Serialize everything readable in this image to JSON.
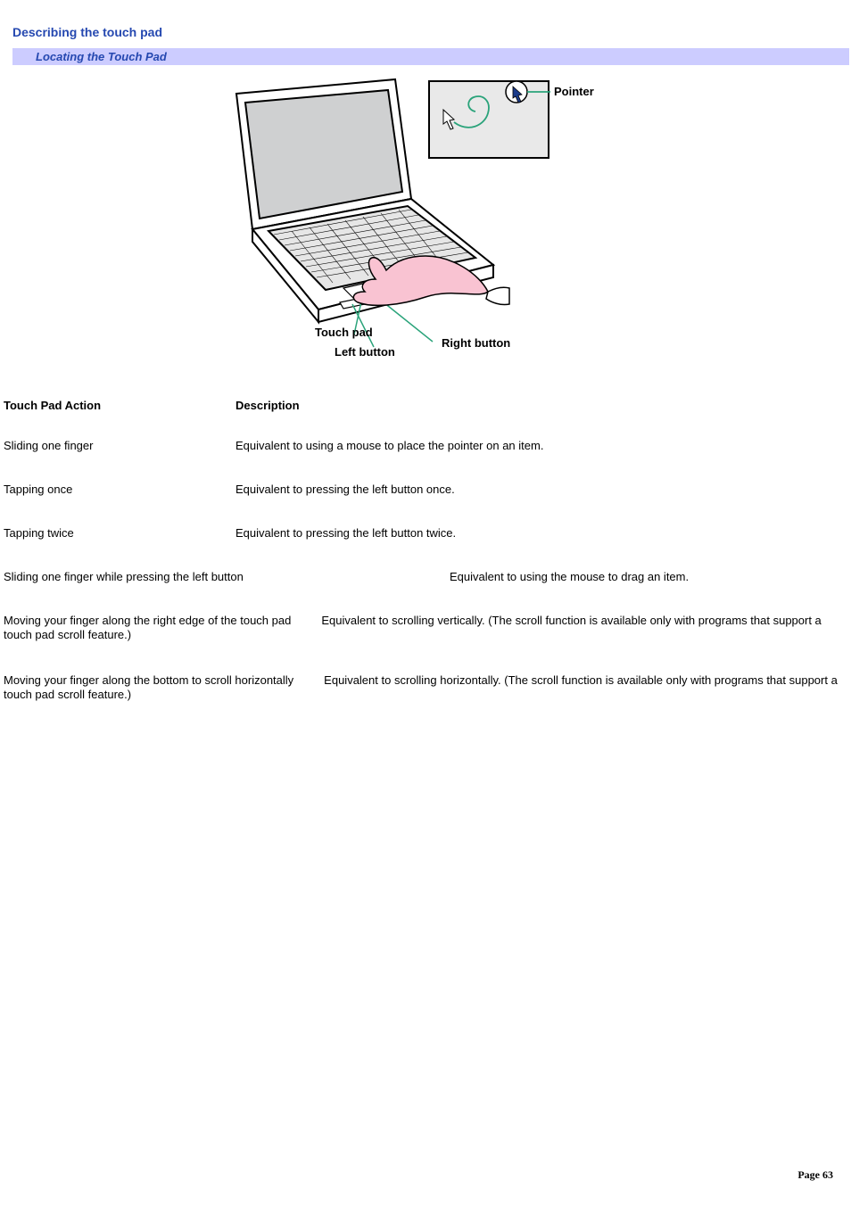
{
  "colors": {
    "heading": "#2548b0",
    "subbar_bg": "#ccccff",
    "subbar_text": "#2548b0",
    "hand_fill": "#f9c3d2",
    "swirl": "#2aa37a",
    "pointer_fill": "#1a3a8a",
    "text": "#000000",
    "bg": "#ffffff",
    "line": "#000000",
    "screen_fill": "#cfd0d1"
  },
  "heading": "Describing the touch pad",
  "sub_heading": "Locating the Touch Pad",
  "diagram_labels": {
    "pointer": "Pointer",
    "touch_pad": "Touch pad",
    "left_button": "Left button",
    "right_button": "Right button"
  },
  "table": {
    "header_action": "Touch Pad Action",
    "header_desc": "Description",
    "rows": [
      {
        "action": "Sliding one finger",
        "desc": "Equivalent to using a mouse to place the pointer on an item.",
        "layout": "simple"
      },
      {
        "action": "Tapping once",
        "desc": "Equivalent to pressing the left button once.",
        "layout": "simple"
      },
      {
        "action": "Tapping twice",
        "desc": "Equivalent to pressing the left button twice.",
        "layout": "simple"
      },
      {
        "action": "Sliding one finger while pressing the left button",
        "desc": "Equivalent to using the mouse to drag an item.",
        "layout": "wrap",
        "action_width": 500
      },
      {
        "action": "Moving your finger along the right edge of the touch pad",
        "desc": "Equivalent to scrolling vertically. (The scroll function is available only with programs that support a touch pad scroll feature.)",
        "layout": "continuous"
      },
      {
        "action": "Moving your finger along the bottom to scroll horizontally",
        "desc": "Equivalent to scrolling horizontally. (The scroll function is available only with programs that support a touch pad scroll feature.)",
        "layout": "continuous"
      }
    ]
  },
  "page_number_label": "Page",
  "page_number": "63"
}
